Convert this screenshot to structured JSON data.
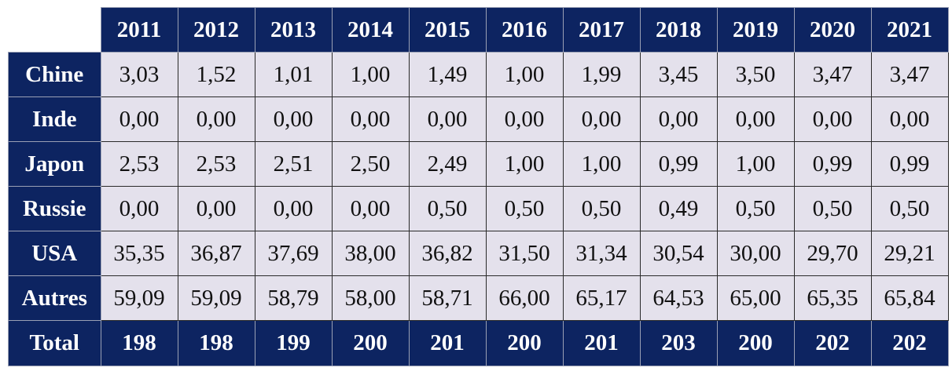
{
  "years": [
    "2011",
    "2012",
    "2013",
    "2014",
    "2015",
    "2016",
    "2017",
    "2018",
    "2019",
    "2020",
    "2021"
  ],
  "rows": [
    {
      "label": "Chine",
      "values": [
        "3,03",
        "1,52",
        "1,01",
        "1,00",
        "1,49",
        "1,00",
        "1,99",
        "3,45",
        "3,50",
        "3,47",
        "3,47"
      ]
    },
    {
      "label": "Inde",
      "values": [
        "0,00",
        "0,00",
        "0,00",
        "0,00",
        "0,00",
        "0,00",
        "0,00",
        "0,00",
        "0,00",
        "0,00",
        "0,00"
      ]
    },
    {
      "label": "Japon",
      "values": [
        "2,53",
        "2,53",
        "2,51",
        "2,50",
        "2,49",
        "1,00",
        "1,00",
        "0,99",
        "1,00",
        "0,99",
        "0,99"
      ]
    },
    {
      "label": "Russie",
      "values": [
        "0,00",
        "0,00",
        "0,00",
        "0,00",
        "0,50",
        "0,50",
        "0,50",
        "0,49",
        "0,50",
        "0,50",
        "0,50"
      ]
    },
    {
      "label": "USA",
      "values": [
        "35,35",
        "36,87",
        "37,69",
        "38,00",
        "36,82",
        "31,50",
        "31,34",
        "30,54",
        "30,00",
        "29,70",
        "29,21"
      ]
    },
    {
      "label": "Autres",
      "values": [
        "59,09",
        "59,09",
        "58,79",
        "58,00",
        "58,71",
        "66,00",
        "65,17",
        "64,53",
        "65,00",
        "65,35",
        "65,84"
      ]
    }
  ],
  "total": {
    "label": "Total",
    "values": [
      "198",
      "198",
      "199",
      "200",
      "201",
      "200",
      "201",
      "203",
      "200",
      "202",
      "202"
    ]
  }
}
